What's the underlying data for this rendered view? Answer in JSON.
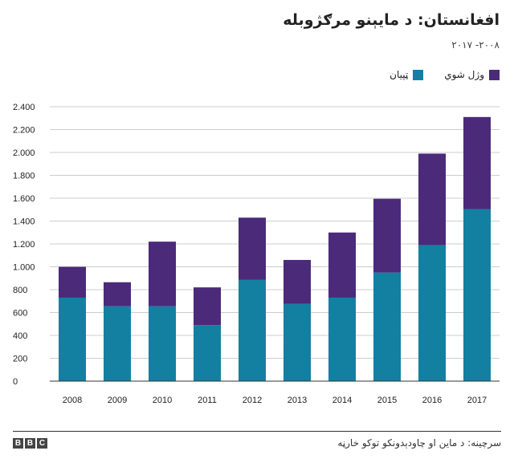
{
  "title": "افغانستان: د مایېنو مرګژوبله",
  "subtitle": "۲۰۰۸- ۲۰۱۷",
  "source": "سرچینه: د ماین او چاودېدونکو توکو خارڼه",
  "brand": {
    "letters": [
      "B",
      "B",
      "C"
    ]
  },
  "colors": {
    "wounded": "#1380A1",
    "killed": "#4B2A7A",
    "gridline": "#cccccc",
    "axis": "#333333"
  },
  "chart_data": {
    "type": "bar",
    "stacked": true,
    "categories": [
      "2008",
      "2009",
      "2010",
      "2011",
      "2012",
      "2013",
      "2014",
      "2015",
      "2016",
      "2017"
    ],
    "series": [
      {
        "name": "ټپيان",
        "color": "#1380A1",
        "values": [
          730,
          655,
          655,
          490,
          885,
          675,
          730,
          950,
          1190,
          1505
        ]
      },
      {
        "name": "وژل شوي",
        "color": "#4B2A7A",
        "values": [
          270,
          210,
          565,
          330,
          545,
          385,
          570,
          645,
          800,
          805
        ]
      }
    ],
    "ylim": [
      0,
      2400
    ],
    "yticks": [
      0,
      200,
      400,
      600,
      800,
      1000,
      1200,
      1400,
      1600,
      1800,
      2000,
      2200,
      2400
    ],
    "ytick_labels": [
      "0",
      "200",
      "400",
      "600",
      "800",
      "1.000",
      "1.200",
      "1.400",
      "1.600",
      "1.800",
      "2.000",
      "2.200",
      "2.400"
    ],
    "grid": true,
    "legend_position": "top-right"
  }
}
